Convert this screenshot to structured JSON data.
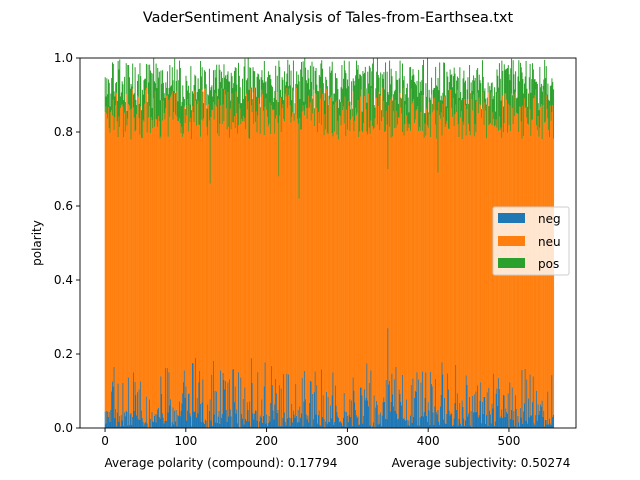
{
  "chart_data": {
    "type": "bar",
    "stacked": true,
    "title": "VaderSentiment Analysis of Tales-from-Earthsea.txt",
    "xlabel": "",
    "ylabel": "polarity",
    "xlim": [
      -31,
      583
    ],
    "ylim": [
      0.0,
      1.0
    ],
    "x_ticks": [
      0,
      100,
      200,
      300,
      400,
      500
    ],
    "y_ticks": [
      0.0,
      0.2,
      0.4,
      0.6,
      0.8,
      1.0
    ],
    "grid": false,
    "legend_position": "center-right",
    "n_sentences": 556,
    "series": [
      {
        "name": "neg",
        "color": "#1f77b4",
        "summary": "per-sentence negative score; mostly 0.00-0.08, frequent spikes to 0.10-0.19, max about 0.27 near sentence 350"
      },
      {
        "name": "neu",
        "color": "#ff7f0e",
        "summary": "per-sentence neutral score stacked on neg; stack tops mostly 0.78-0.92, dips to about 0.62-0.70 near sentences 130, 215, 240, 350, 412"
      },
      {
        "name": "pos",
        "color": "#2ca02c",
        "summary": "per-sentence positive score stacked on neg+neu; stack totals 0.82-1.00, band 0.85-1.00"
      }
    ]
  },
  "footer": {
    "avg_polarity": "Average polarity (compound): 0.17794",
    "avg_subjectivity": "Average subjectivity: 0.50274"
  }
}
